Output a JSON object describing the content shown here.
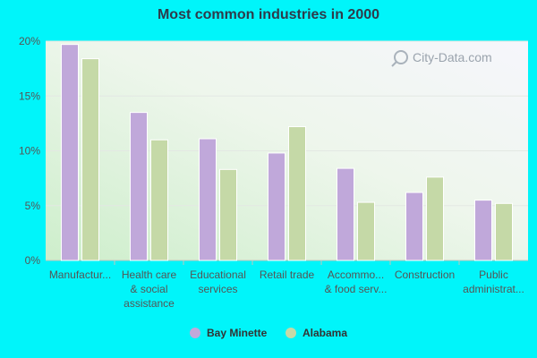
{
  "chart_data": {
    "type": "bar",
    "title": "Most common industries in 2000",
    "categories": [
      [
        "Manufactur..."
      ],
      [
        "Health care",
        "& social",
        "assistance"
      ],
      [
        "Educational",
        "services"
      ],
      [
        "Retail trade"
      ],
      [
        "Accommo...",
        "& food serv..."
      ],
      [
        "Construction"
      ],
      [
        "Public",
        "administrat..."
      ]
    ],
    "series": [
      {
        "name": "Bay Minette",
        "color": "#c0a8da",
        "values": [
          19.7,
          13.5,
          11.1,
          9.8,
          8.4,
          6.2,
          5.5
        ]
      },
      {
        "name": "Alabama",
        "color": "#c5d9a7",
        "values": [
          18.4,
          11.0,
          8.3,
          12.2,
          5.3,
          7.6,
          5.2
        ]
      }
    ],
    "ylim": [
      0,
      20
    ],
    "yticks": [
      "0%",
      "5%",
      "10%",
      "15%",
      "20%"
    ],
    "ytick_values": [
      0,
      5,
      10,
      15,
      20
    ],
    "grid": true,
    "legend_position": "bottom",
    "watermark": "City-Data.com"
  }
}
